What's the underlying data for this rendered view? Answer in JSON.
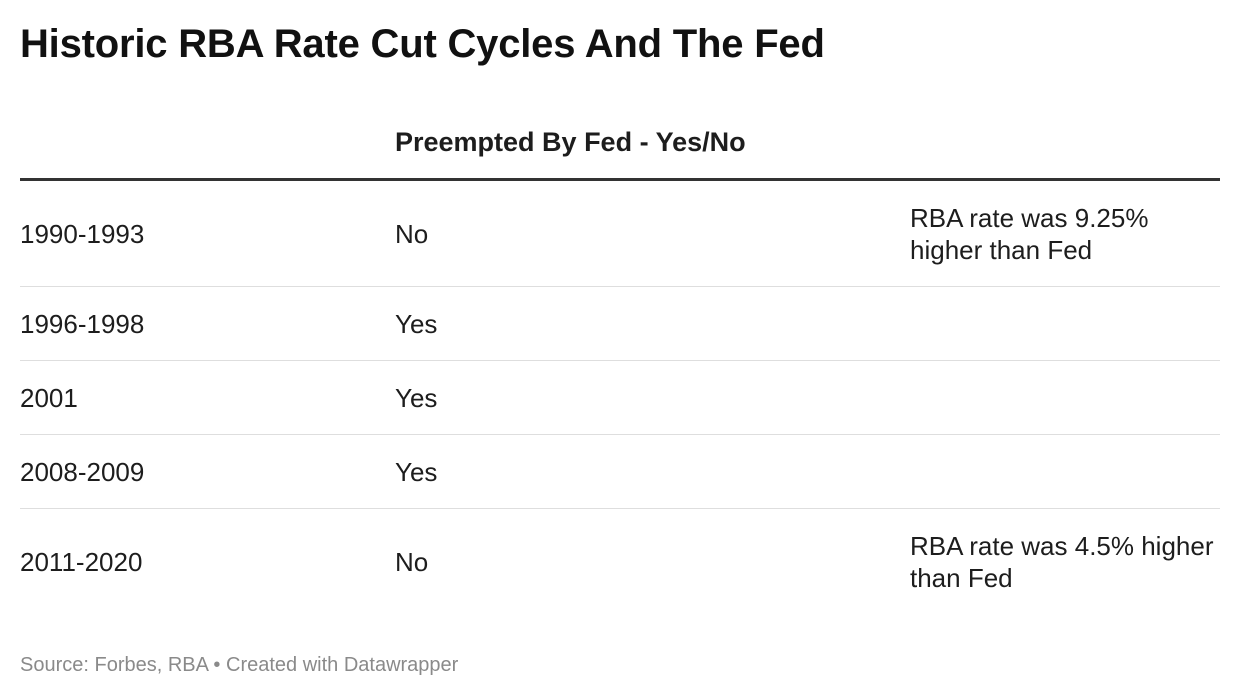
{
  "title": "Historic RBA Rate Cut Cycles And The Fed",
  "footer": {
    "source": "Source: Forbes, RBA",
    "separator": " • ",
    "created_with": "Created with Datawrapper"
  },
  "chart_data": {
    "type": "table",
    "columns": [
      "",
      "Preempted By Fed - Yes/No",
      ""
    ],
    "rows": [
      {
        "cycle": "1990-1993",
        "preempted": "No",
        "note": "RBA rate was 9.25% higher than Fed"
      },
      {
        "cycle": "1996-1998",
        "preempted": "Yes",
        "note": ""
      },
      {
        "cycle": "2001",
        "preempted": "Yes",
        "note": ""
      },
      {
        "cycle": "2008-2009",
        "preempted": "Yes",
        "note": ""
      },
      {
        "cycle": "2011-2020",
        "preempted": "No",
        "note": "RBA rate was 4.5% higher than Fed"
      }
    ]
  }
}
